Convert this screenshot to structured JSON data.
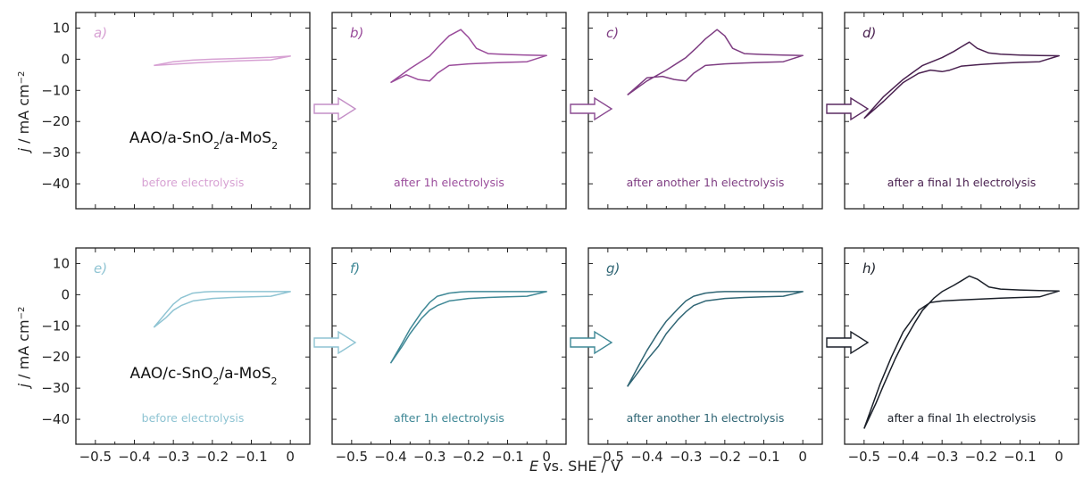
{
  "figure": {
    "ylabel_italic": "j",
    "ylabel_rest": " / mA cm",
    "ylabel_sup": "−2",
    "xlabel_italic": "E",
    "xlabel_rest": " vs. SHE / V"
  },
  "sample_labels": [
    {
      "pre": "AAO/a-SnO",
      "sub1": "2",
      "mid": "/a-MoS",
      "sub2": "2"
    },
    {
      "pre": "AAO/c-SnO",
      "sub1": "2",
      "mid": "/a-MoS",
      "sub2": "2"
    }
  ],
  "chart_data": [
    {
      "type": "line",
      "panel": "a)",
      "caption": "before electrolysis",
      "color": "#d7a1d3",
      "xlim": [
        -0.55,
        0.05
      ],
      "ylim": [
        -48,
        15
      ],
      "x": [
        -0.35,
        -0.3,
        -0.25,
        -0.2,
        -0.15,
        -0.1,
        -0.05,
        0.0,
        -0.05,
        -0.1,
        -0.15,
        -0.2,
        -0.25,
        -0.3,
        -0.35
      ],
      "y": [
        -2.0,
        -0.8,
        -0.3,
        0.0,
        0.2,
        0.4,
        0.6,
        1.0,
        -0.2,
        -0.4,
        -0.6,
        -0.9,
        -1.2,
        -1.6,
        -2.0
      ]
    },
    {
      "type": "line",
      "panel": "b)",
      "caption": "after 1h electrolysis",
      "color": "#9a4c9b",
      "xlim": [
        -0.55,
        0.05
      ],
      "ylim": [
        -48,
        15
      ],
      "x": [
        -0.4,
        -0.35,
        -0.3,
        -0.27,
        -0.25,
        -0.22,
        -0.2,
        -0.18,
        -0.15,
        -0.1,
        -0.05,
        0.0,
        -0.05,
        -0.1,
        -0.15,
        -0.2,
        -0.25,
        -0.28,
        -0.3,
        -0.33,
        -0.36,
        -0.4
      ],
      "y": [
        -7.5,
        -3.0,
        1.0,
        5.0,
        7.5,
        9.5,
        7.0,
        3.5,
        1.8,
        1.5,
        1.3,
        1.2,
        -0.8,
        -1.0,
        -1.2,
        -1.5,
        -2.0,
        -4.5,
        -7.0,
        -6.5,
        -5.0,
        -7.5
      ]
    },
    {
      "type": "line",
      "panel": "c)",
      "caption": "after another 1h electrolysis",
      "color": "#7e3d82",
      "xlim": [
        -0.55,
        0.05
      ],
      "ylim": [
        -48,
        15
      ],
      "x": [
        -0.45,
        -0.4,
        -0.35,
        -0.3,
        -0.27,
        -0.25,
        -0.22,
        -0.2,
        -0.18,
        -0.15,
        -0.1,
        -0.05,
        0.0,
        -0.05,
        -0.1,
        -0.15,
        -0.2,
        -0.25,
        -0.28,
        -0.3,
        -0.33,
        -0.36,
        -0.4,
        -0.45
      ],
      "y": [
        -11.5,
        -7.0,
        -3.5,
        0.5,
        4.0,
        6.5,
        9.5,
        7.5,
        3.5,
        1.8,
        1.5,
        1.3,
        1.2,
        -0.8,
        -1.0,
        -1.2,
        -1.5,
        -2.0,
        -4.5,
        -7.0,
        -6.5,
        -5.5,
        -6.0,
        -11.5
      ]
    },
    {
      "type": "line",
      "panel": "d)",
      "caption": "after a final 1h electrolysis",
      "color": "#4a2150",
      "xlim": [
        -0.55,
        0.05
      ],
      "ylim": [
        -48,
        15
      ],
      "x": [
        -0.5,
        -0.45,
        -0.4,
        -0.35,
        -0.3,
        -0.27,
        -0.25,
        -0.23,
        -0.21,
        -0.18,
        -0.15,
        -0.1,
        -0.05,
        0.0,
        -0.05,
        -0.1,
        -0.15,
        -0.2,
        -0.25,
        -0.28,
        -0.3,
        -0.33,
        -0.36,
        -0.4,
        -0.45,
        -0.5
      ],
      "y": [
        -19.0,
        -12.0,
        -6.5,
        -2.0,
        0.5,
        2.5,
        4.0,
        5.5,
        3.5,
        2.0,
        1.6,
        1.3,
        1.2,
        1.1,
        -0.8,
        -1.0,
        -1.3,
        -1.7,
        -2.2,
        -3.5,
        -4.0,
        -3.5,
        -4.5,
        -7.5,
        -13.5,
        -19.0
      ]
    },
    {
      "type": "line",
      "panel": "e)",
      "caption": "before electrolysis",
      "color": "#8fc4d3",
      "xlim": [
        -0.55,
        0.05
      ],
      "ylim": [
        -48,
        15
      ],
      "x": [
        -0.35,
        -0.32,
        -0.3,
        -0.28,
        -0.25,
        -0.22,
        -0.2,
        -0.15,
        -0.1,
        -0.05,
        0.0,
        -0.05,
        -0.1,
        -0.15,
        -0.2,
        -0.25,
        -0.28,
        -0.3,
        -0.32,
        -0.35
      ],
      "y": [
        -10.5,
        -6.0,
        -3.0,
        -1.0,
        0.5,
        0.9,
        1.0,
        1.0,
        1.0,
        1.0,
        1.0,
        -0.5,
        -0.7,
        -0.9,
        -1.2,
        -2.0,
        -3.5,
        -5.0,
        -7.5,
        -10.5
      ]
    },
    {
      "type": "line",
      "panel": "f)",
      "caption": "after 1h electrolysis",
      "color": "#3f8896",
      "xlim": [
        -0.55,
        0.05
      ],
      "ylim": [
        -48,
        15
      ],
      "x": [
        -0.4,
        -0.37,
        -0.35,
        -0.32,
        -0.3,
        -0.28,
        -0.25,
        -0.22,
        -0.2,
        -0.15,
        -0.1,
        -0.05,
        0.0,
        -0.05,
        -0.1,
        -0.15,
        -0.2,
        -0.25,
        -0.28,
        -0.3,
        -0.32,
        -0.35,
        -0.37,
        -0.4
      ],
      "y": [
        -22.0,
        -15.5,
        -11.0,
        -5.5,
        -2.5,
        -0.5,
        0.5,
        0.9,
        1.0,
        1.0,
        1.0,
        1.0,
        1.0,
        -0.5,
        -0.7,
        -0.9,
        -1.2,
        -2.0,
        -3.5,
        -5.0,
        -7.5,
        -12.5,
        -16.5,
        -22.0
      ]
    },
    {
      "type": "line",
      "panel": "g)",
      "caption": "after another 1h electrolysis",
      "color": "#2f6574",
      "xlim": [
        -0.55,
        0.05
      ],
      "ylim": [
        -48,
        15
      ],
      "x": [
        -0.45,
        -0.42,
        -0.4,
        -0.37,
        -0.35,
        -0.32,
        -0.3,
        -0.28,
        -0.25,
        -0.22,
        -0.2,
        -0.15,
        -0.1,
        -0.05,
        0.0,
        -0.05,
        -0.1,
        -0.15,
        -0.2,
        -0.25,
        -0.28,
        -0.3,
        -0.32,
        -0.35,
        -0.37,
        -0.4,
        -0.42,
        -0.45
      ],
      "y": [
        -29.5,
        -22.5,
        -18.0,
        -12.0,
        -8.5,
        -4.5,
        -2.0,
        -0.5,
        0.5,
        0.9,
        1.0,
        1.0,
        1.0,
        1.0,
        1.0,
        -0.5,
        -0.7,
        -0.9,
        -1.2,
        -2.0,
        -3.5,
        -5.5,
        -8.0,
        -12.5,
        -16.5,
        -21.0,
        -24.5,
        -29.5
      ]
    },
    {
      "type": "line",
      "panel": "h)",
      "caption": "after a final 1h electrolysis",
      "color": "#1a1f28",
      "xlim": [
        -0.55,
        0.05
      ],
      "ylim": [
        -48,
        15
      ],
      "x": [
        -0.5,
        -0.47,
        -0.45,
        -0.42,
        -0.4,
        -0.37,
        -0.35,
        -0.32,
        -0.3,
        -0.27,
        -0.25,
        -0.23,
        -0.21,
        -0.18,
        -0.15,
        -0.1,
        -0.05,
        0.0,
        -0.05,
        -0.1,
        -0.15,
        -0.2,
        -0.25,
        -0.3,
        -0.33,
        -0.36,
        -0.4,
        -0.43,
        -0.46,
        -0.5
      ],
      "y": [
        -43.0,
        -35.0,
        -29.0,
        -20.5,
        -15.5,
        -9.0,
        -5.0,
        -1.0,
        1.0,
        3.0,
        4.5,
        6.0,
        5.0,
        2.5,
        1.8,
        1.5,
        1.3,
        1.2,
        -0.7,
        -0.9,
        -1.1,
        -1.4,
        -1.7,
        -2.0,
        -2.5,
        -5.0,
        -12.0,
        -20.0,
        -29.0,
        -43.0
      ]
    }
  ],
  "ytick_labels": [
    "10",
    "0",
    "−10",
    "−20",
    "−30",
    "−40"
  ],
  "xtick_labels": [
    "−0.5",
    "−0.4",
    "−0.3",
    "−0.2",
    "−0.1",
    "0"
  ],
  "arrow_colors": [
    "#c48fc7",
    "#8a4a91",
    "#5a2a60",
    "#8fc4d3",
    "#3f8896",
    "#1a1f28"
  ]
}
